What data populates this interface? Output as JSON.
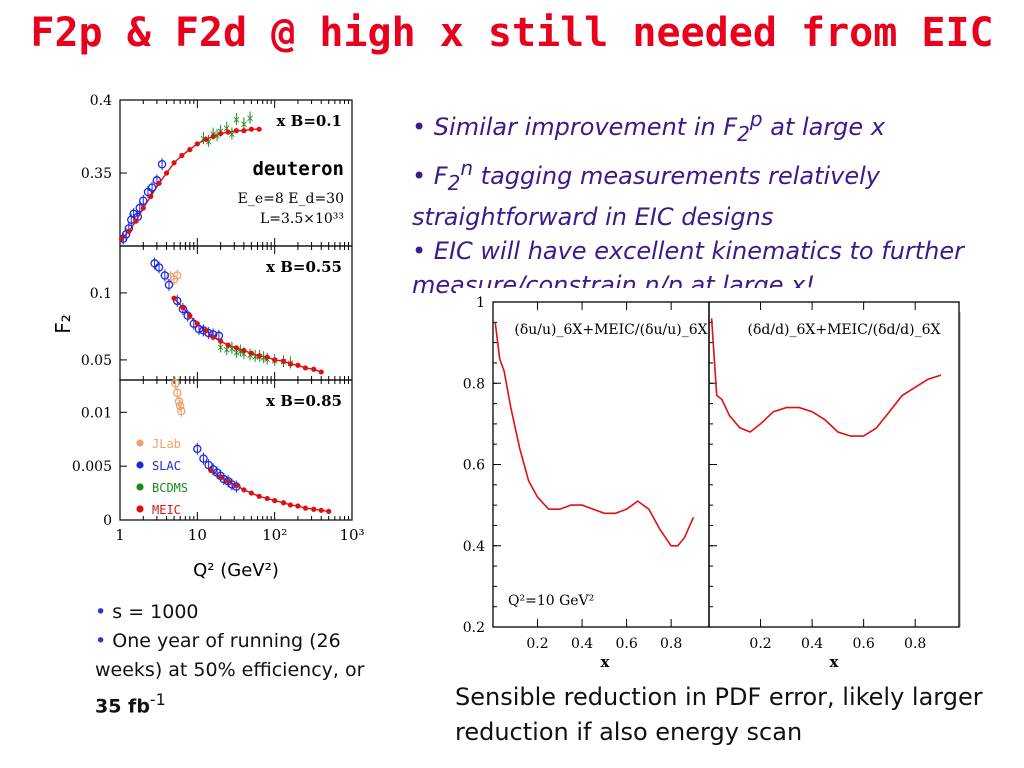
{
  "slide": {
    "title": "F2p & F2d @ high x still needed from EIC",
    "bullets_top": [
      {
        "pre": "Similar improvement in F",
        "sub": "2",
        "sup": "p",
        "post": " at large x"
      },
      {
        "pre": "F",
        "sub": "2",
        "sup": "n",
        "post": " tagging measurements relatively straightforward in EIC designs"
      },
      {
        "pre": "EIC will have excellent kinematics to further measure/constrain n/p at large x!",
        "sub": "",
        "sup": "",
        "post": ""
      }
    ],
    "bullets_bottom": {
      "line1": "s = 1000",
      "line2a": "One year of running (26 weeks)  at 50% efficiency, or ",
      "line2b": "35 fb",
      "line2c": "-1"
    },
    "caption": "Sensible reduction in PDF error, likely larger reduction if also energy scan"
  },
  "colors": {
    "title": "#e8001c",
    "bullets": "#3a1a8c",
    "jlab": "#f0a070",
    "slac": "#1a2ae0",
    "bcdms": "#1a8a1a",
    "meic": "#e01010"
  },
  "chart_data": [
    {
      "type": "scatter",
      "xscale": "log",
      "xlabel": "Q² (GeV²)",
      "ylabel": "F₂",
      "xlim": [
        1,
        1000
      ],
      "x_ticklabels": [
        "1",
        "10",
        "10²",
        "10³"
      ],
      "legend": [
        "JLab",
        "SLAC",
        "BCDMS",
        "MEIC"
      ],
      "panels": [
        {
          "label": "x_B=0.1",
          "annotation": [
            "deuteron",
            "E_e=8  E_d=30",
            "L=3.5×10³³"
          ],
          "ylim": [
            0.3,
            0.4
          ],
          "yticks": [
            "0.35",
            "0.4"
          ],
          "series": [
            {
              "name": "SLAC",
              "x": [
                1.1,
                1.2,
                1.3,
                1.4,
                1.5,
                1.7,
                1.8,
                2.0,
                2.3,
                2.6,
                3.0,
                3.5
              ],
              "y": [
                0.305,
                0.308,
                0.312,
                0.318,
                0.322,
                0.32,
                0.326,
                0.331,
                0.337,
                0.34,
                0.345,
                0.356
              ]
            },
            {
              "name": "BCDMS",
              "x": [
                12,
                14,
                16,
                18,
                20,
                24,
                28,
                32,
                40,
                48
              ],
              "y": [
                0.374,
                0.372,
                0.377,
                0.376,
                0.379,
                0.381,
                0.377,
                0.387,
                0.384,
                0.388
              ]
            },
            {
              "name": "MEIC",
              "x": [
                1.05,
                1.3,
                1.6,
                2,
                2.5,
                3.2,
                4,
                5,
                6.3,
                8,
                10,
                13,
                16,
                20,
                25,
                32,
                40,
                50,
                63
              ],
              "y": [
                0.305,
                0.31,
                0.317,
                0.326,
                0.334,
                0.343,
                0.35,
                0.357,
                0.362,
                0.366,
                0.37,
                0.373,
                0.375,
                0.377,
                0.378,
                0.379,
                0.379,
                0.38,
                0.38
              ]
            }
          ]
        },
        {
          "label": "x_B=0.55",
          "ylim": [
            0.035,
            0.135
          ],
          "yticks": [
            "0.05",
            "0.1"
          ],
          "series": [
            {
              "name": "JLab",
              "x": [
                4.5,
                5,
                5.5
              ],
              "y": [
                0.112,
                0.11,
                0.113
              ]
            },
            {
              "name": "SLAC",
              "x": [
                2.8,
                3.2,
                3.8,
                4.3,
                5.5,
                6.5,
                7.5,
                9,
                10.5,
                12,
                14,
                16,
                19
              ],
              "y": [
                0.122,
                0.119,
                0.113,
                0.106,
                0.094,
                0.088,
                0.083,
                0.077,
                0.073,
                0.072,
                0.07,
                0.069,
                0.068
              ]
            },
            {
              "name": "BCDMS",
              "x": [
                20,
                24,
                28,
                32,
                36,
                40,
                48,
                56,
                64,
                72,
                80,
                100,
                130,
                160
              ],
              "y": [
                0.06,
                0.058,
                0.059,
                0.056,
                0.057,
                0.055,
                0.054,
                0.053,
                0.053,
                0.052,
                0.051,
                0.05,
                0.049,
                0.048
              ]
            },
            {
              "name": "MEIC",
              "x": [
                5,
                6.5,
                8,
                10,
                13,
                16,
                20,
                25,
                32,
                40,
                50,
                63,
                80,
                100,
                130,
                160,
                200,
                250,
                320,
                400
              ],
              "y": [
                0.096,
                0.089,
                0.083,
                0.077,
                0.072,
                0.067,
                0.064,
                0.061,
                0.059,
                0.057,
                0.055,
                0.053,
                0.052,
                0.05,
                0.049,
                0.047,
                0.046,
                0.044,
                0.043,
                0.041
              ]
            }
          ]
        },
        {
          "label": "x_B=0.85",
          "ylim": [
            0,
            0.013
          ],
          "yticks": [
            "0",
            "0.005",
            "0.01"
          ],
          "series": [
            {
              "name": "JLab",
              "x": [
                5.2,
                5.5,
                5.8,
                6.0,
                6.2
              ],
              "y": [
                0.0127,
                0.0118,
                0.011,
                0.0106,
                0.0101
              ]
            },
            {
              "name": "SLAC",
              "x": [
                10,
                12,
                14,
                16,
                18,
                20,
                22,
                25,
                28,
                32
              ],
              "y": [
                0.0066,
                0.0057,
                0.0051,
                0.0047,
                0.0044,
                0.0041,
                0.0038,
                0.0036,
                0.0033,
                0.0031
              ]
            },
            {
              "name": "MEIC",
              "x": [
                15,
                20,
                25,
                32,
                40,
                50,
                63,
                80,
                100,
                130,
                160,
                200,
                250,
                320,
                400,
                500
              ],
              "y": [
                0.0046,
                0.004,
                0.0036,
                0.0032,
                0.0028,
                0.0025,
                0.0022,
                0.002,
                0.0018,
                0.0016,
                0.0014,
                0.0013,
                0.0011,
                0.001,
                0.0009,
                0.0008
              ]
            }
          ]
        }
      ]
    },
    {
      "type": "line",
      "xlabel": "x",
      "ylim": [
        0.2,
        1
      ],
      "yticks": [
        "0.2",
        "0.4",
        "0.6",
        "0.8",
        "1"
      ],
      "xticks": [
        "0.2",
        "0.4",
        "0.6",
        "0.8"
      ],
      "annotation": "Q²=10 GeV²",
      "panels": [
        {
          "label": "(δu/u)_6X+MEIC/(δu/u)_6X",
          "x": [
            0.01,
            0.03,
            0.05,
            0.08,
            0.12,
            0.16,
            0.2,
            0.25,
            0.3,
            0.35,
            0.4,
            0.45,
            0.5,
            0.55,
            0.6,
            0.65,
            0.7,
            0.75,
            0.8,
            0.83,
            0.86,
            0.9
          ],
          "y": [
            0.95,
            0.86,
            0.83,
            0.74,
            0.64,
            0.56,
            0.52,
            0.49,
            0.49,
            0.5,
            0.5,
            0.49,
            0.48,
            0.48,
            0.49,
            0.51,
            0.49,
            0.44,
            0.4,
            0.4,
            0.42,
            0.47
          ]
        },
        {
          "label": "(δd/d)_6X+MEIC/(δd/d)_6X",
          "x": [
            0.01,
            0.03,
            0.05,
            0.08,
            0.12,
            0.16,
            0.2,
            0.25,
            0.3,
            0.35,
            0.4,
            0.45,
            0.5,
            0.55,
            0.6,
            0.65,
            0.7,
            0.75,
            0.8,
            0.85,
            0.9
          ],
          "y": [
            0.96,
            0.77,
            0.76,
            0.72,
            0.69,
            0.68,
            0.7,
            0.73,
            0.74,
            0.74,
            0.73,
            0.71,
            0.68,
            0.67,
            0.67,
            0.69,
            0.73,
            0.77,
            0.79,
            0.81,
            0.82
          ]
        }
      ]
    }
  ]
}
